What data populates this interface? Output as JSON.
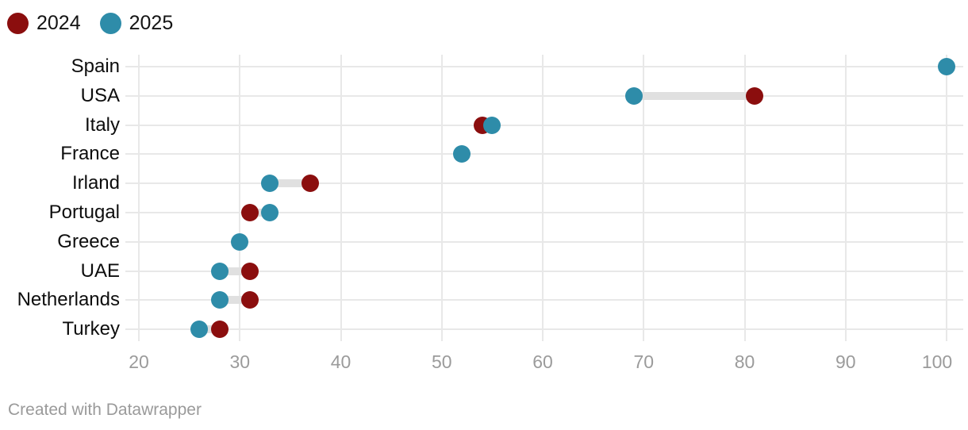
{
  "legend": [
    {
      "label": "2024",
      "color": "#8b0e0e"
    },
    {
      "label": "2025",
      "color": "#2e8ca9"
    }
  ],
  "footer": {
    "text": "Created with Datawrapper"
  },
  "chart_data": {
    "type": "scatter",
    "subtype": "range-dot-plot",
    "title": "",
    "xlabel": "",
    "ylabel": "",
    "categories": [
      "Spain",
      "USA",
      "Italy",
      "France",
      "Irland",
      "Portugal",
      "Greece",
      "UAE",
      "Netherlands",
      "Turkey"
    ],
    "series": [
      {
        "name": "2024",
        "color": "#8b0e0e",
        "values": [
          null,
          81,
          54,
          null,
          37,
          31,
          null,
          31,
          31,
          28
        ]
      },
      {
        "name": "2025",
        "color": "#2e8ca9",
        "values": [
          100,
          69,
          55,
          52,
          33,
          33,
          30,
          28,
          28,
          26
        ]
      }
    ],
    "xlim": [
      20,
      100
    ],
    "xticks": [
      20,
      30,
      40,
      50,
      60,
      70,
      80,
      90,
      100
    ],
    "grid": true,
    "legend_position": "top-left",
    "styles": {
      "gridline_color": "#e8e8e8",
      "row_line_color": "#e8e8e8",
      "connector_color": "#e0e0e0",
      "axis_text_color": "#9b9b9b",
      "label_text_color": "#0d0d0d"
    }
  }
}
